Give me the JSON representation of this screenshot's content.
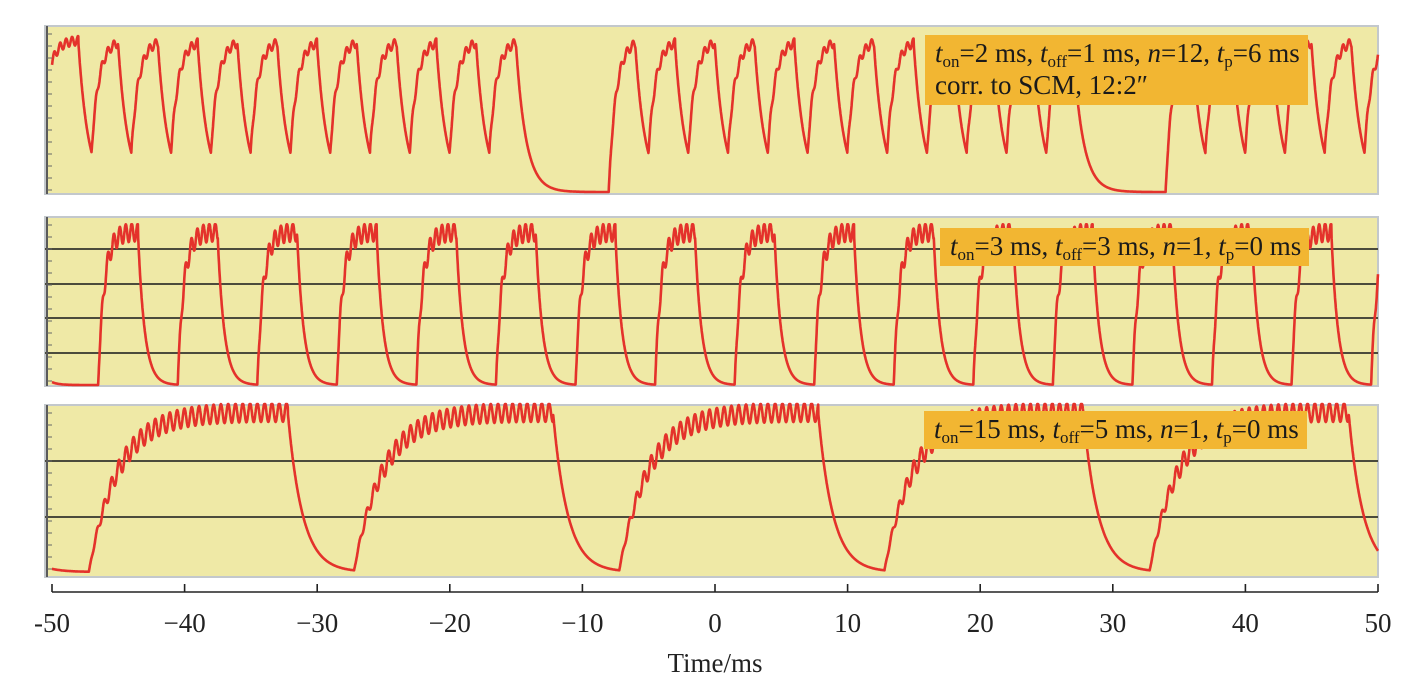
{
  "colors": {
    "plot_bg": "#efe9a6",
    "plot_border": "#c3c8cc",
    "trace": "#e4322b",
    "gridline": "#4b4b3c",
    "annotation_bg": "#f2b632",
    "axis": "#222222"
  },
  "chart_data": [
    {
      "type": "line",
      "panel": "top",
      "annotation": {
        "ton": "=2 ms, ",
        "toff": "=1 ms, ",
        "n": "=12, ",
        "tp": "=6 ms",
        "line2": "corr. to SCM, 12:2″"
      },
      "pulse_train": {
        "start_ms": -50,
        "t_on_ms": 2,
        "t_off_ms": 1,
        "pulses_per_group": 12,
        "pause_ms": 6
      },
      "grid": false
    },
    {
      "type": "line",
      "panel": "middle",
      "annotation": {
        "ton": "=3 ms, ",
        "toff": "=3 ms, ",
        "n": "=1, ",
        "tp": "=0 ms"
      },
      "pulse_train": {
        "start_ms": -46.5,
        "t_on_ms": 3,
        "t_off_ms": 3,
        "pulses_per_group": 1,
        "pause_ms": 0
      },
      "grid": true
    },
    {
      "type": "line",
      "panel": "bottom",
      "annotation": {
        "ton": "=15 ms, ",
        "toff": "=5 ms, ",
        "n": "=1, ",
        "tp": "=0 ms"
      },
      "pulse_train": {
        "start_ms": -47.2,
        "t_on_ms": 15,
        "t_off_ms": 5,
        "pulses_per_group": 1,
        "pause_ms": 0
      },
      "grid": true
    }
  ],
  "x_axis": {
    "label": "Time/ms",
    "xlim": [
      -50,
      50
    ],
    "ticks": [
      -50,
      -40,
      -30,
      -20,
      -10,
      0,
      10,
      20,
      30,
      40,
      50
    ],
    "tick_labels": [
      "-50",
      "−40",
      "−30",
      "−20",
      "−10",
      "0",
      "10",
      "20",
      "30",
      "40",
      "50"
    ]
  }
}
